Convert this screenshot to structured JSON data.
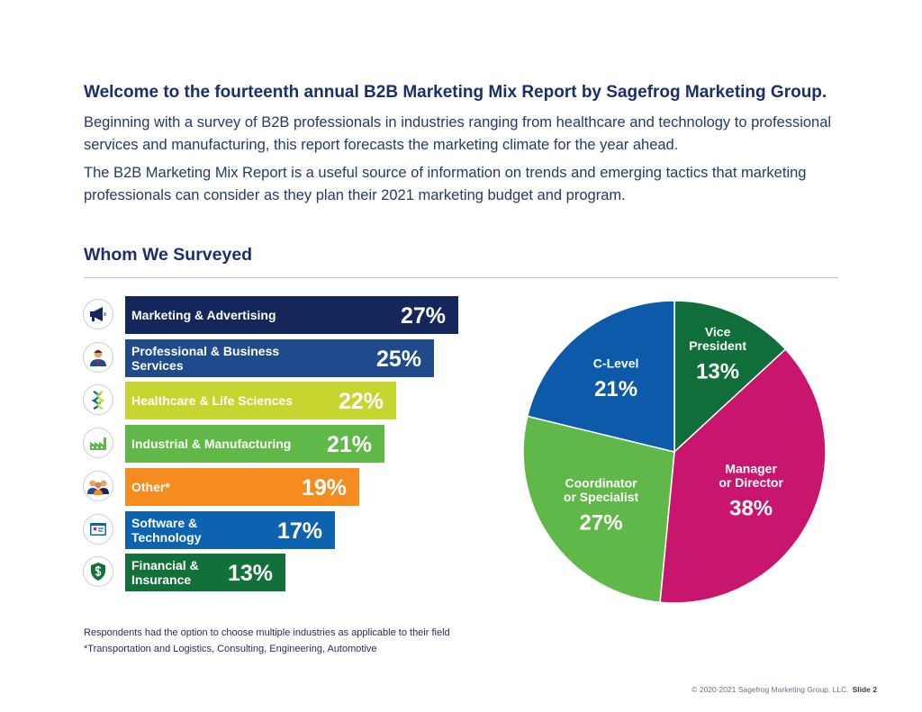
{
  "intro": {
    "heading": "Welcome to the fourteenth annual B2B Marketing Mix Report by Sagefrog Marketing Group.",
    "paragraph1": "Beginning with a survey of B2B professionals in industries ranging from healthcare and technology to professional services and manufacturing, this report forecasts the marketing climate for the year ahead.",
    "paragraph2": "The B2B Marketing Mix Report is a useful source of information on trends and emerging tactics that marketing professionals can consider as they plan their 2021 marketing budget and program."
  },
  "section": {
    "title": "Whom We Surveyed"
  },
  "chart_data": [
    {
      "type": "bar",
      "orientation": "horizontal",
      "categories": [
        "Marketing & Advertising",
        "Professional & Business Services",
        "Healthcare & Life Sciences",
        "Industrial & Manufacturing",
        "Other*",
        "Software & Technology",
        "Financial & Insurance"
      ],
      "category_lines": [
        [
          "Marketing & Advertising"
        ],
        [
          "Professional & Business Services"
        ],
        [
          "Healthcare & Life Sciences"
        ],
        [
          "Industrial & Manufacturing"
        ],
        [
          "Other*"
        ],
        [
          "Software &",
          "Technology"
        ],
        [
          "Financial &",
          "Insurance"
        ]
      ],
      "values": [
        27,
        25,
        22,
        21,
        19,
        17,
        13
      ],
      "value_labels": [
        "27%",
        "25%",
        "22%",
        "21%",
        "19%",
        "17%",
        "13%"
      ],
      "colors": [
        "#14265a",
        "#1f4a8c",
        "#c7d531",
        "#60b848",
        "#f68b1f",
        "#0e63b0",
        "#127039"
      ],
      "icons": [
        "megaphone-icon",
        "businessperson-icon",
        "dna-icon",
        "factory-icon",
        "people-group-icon",
        "software-window-icon",
        "shield-dollar-icon"
      ],
      "grid": false,
      "legend": "none"
    },
    {
      "type": "pie",
      "slices": [
        {
          "label_lines": [
            "Vice",
            "President"
          ],
          "value": 13,
          "value_label": "13%",
          "color": "#0f6e3a"
        },
        {
          "label_lines": [
            "Manager",
            "or Director"
          ],
          "value": 38,
          "value_label": "38%",
          "color": "#c8166f"
        },
        {
          "label_lines": [
            "Coordinator",
            "or Specialist"
          ],
          "value": 27,
          "value_label": "27%",
          "color": "#60b848"
        },
        {
          "label_lines": [
            "C-Level"
          ],
          "value": 21,
          "value_label": "21%",
          "color": "#0d5aaa"
        }
      ],
      "start_angle_deg": 0,
      "direction": "clockwise",
      "legend": "none"
    }
  ],
  "footnotes": {
    "note1": "Respondents had the option to choose multiple industries as applicable to their field",
    "note2": "*Transportation and Logistics, Consulting, Engineering, Automotive"
  },
  "footer": {
    "copyright": "© 2020-2021 Sagefrog Marketing Group, LLC.",
    "slide": "Slide 2"
  }
}
